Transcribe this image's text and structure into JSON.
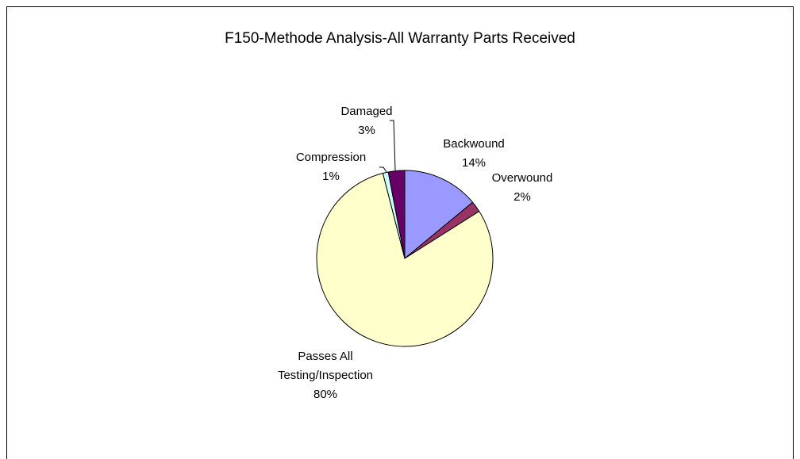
{
  "chart_data": {
    "type": "pie",
    "title": "F150-Methode Analysis-All Warranty Parts Received",
    "categories": [
      "Backwound",
      "Overwound",
      "Passes All Testing/Inspection",
      "Compression",
      "Damaged"
    ],
    "values": [
      14,
      2,
      80,
      1,
      3
    ],
    "value_labels": [
      "14%",
      "2%",
      "80%",
      "1%",
      "3%"
    ],
    "colors": [
      "#9999ff",
      "#993366",
      "#ffffcc",
      "#ccffff",
      "#660066"
    ]
  }
}
